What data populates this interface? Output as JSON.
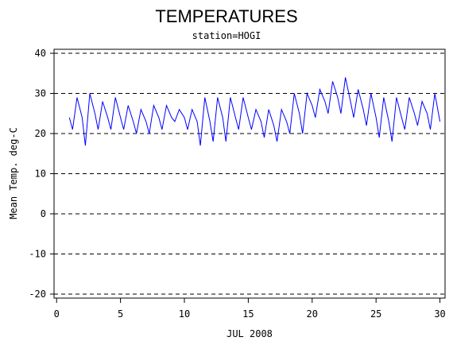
{
  "chart_data": {
    "type": "line",
    "title": "TEMPERATURES",
    "subtitle": "station=HOGI",
    "x_label": "JUL 2008",
    "y_label": "Mean Temp. deg-C",
    "x": [
      1,
      1.25,
      1.6,
      2,
      2.25,
      2.6,
      3,
      3.25,
      3.6,
      4,
      4.25,
      4.6,
      5,
      5.25,
      5.6,
      6,
      6.25,
      6.6,
      7,
      7.25,
      7.6,
      8,
      8.25,
      8.6,
      9,
      9.25,
      9.6,
      10,
      10.25,
      10.6,
      11,
      11.25,
      11.6,
      12,
      12.25,
      12.6,
      13,
      13.25,
      13.6,
      14,
      14.25,
      14.6,
      15,
      15.25,
      15.6,
      16,
      16.25,
      16.6,
      17,
      17.25,
      17.6,
      18,
      18.25,
      18.6,
      19,
      19.25,
      19.6,
      20,
      20.25,
      20.6,
      21,
      21.25,
      21.6,
      22,
      22.25,
      22.6,
      23,
      23.25,
      23.6,
      24,
      24.25,
      24.6,
      25,
      25.25,
      25.6,
      26,
      26.25,
      26.6,
      27,
      27.25,
      27.6,
      28,
      28.25,
      28.6,
      29,
      29.25,
      29.6,
      30
    ],
    "series": [
      {
        "name": "Mean Temp",
        "color": "#0000ff",
        "values": [
          24,
          21,
          29,
          24,
          17,
          30,
          25,
          21,
          28,
          24,
          21,
          29,
          24,
          21,
          27,
          23,
          20,
          26,
          23,
          20,
          27,
          24,
          21,
          27,
          24,
          23,
          26,
          24,
          21,
          26,
          23,
          17,
          29,
          23,
          18,
          29,
          24,
          18,
          29,
          24,
          21,
          29,
          24,
          21,
          26,
          23,
          19,
          26,
          22,
          18,
          26,
          23,
          20,
          30,
          25,
          20,
          30,
          27,
          24,
          31,
          28,
          25,
          33,
          29,
          25,
          34,
          28,
          24,
          31,
          26,
          22,
          30,
          24,
          19,
          29,
          23,
          18,
          29,
          24,
          21,
          29,
          25,
          22,
          28,
          25,
          21,
          30,
          23
        ]
      }
    ],
    "xlim": [
      -0.2,
      30.4
    ],
    "ylim": [
      -21,
      41
    ],
    "xticks": [
      0,
      5,
      10,
      15,
      20,
      25,
      30
    ],
    "yticks": [
      -20,
      -10,
      0,
      10,
      20,
      30,
      40
    ],
    "grid": true
  }
}
